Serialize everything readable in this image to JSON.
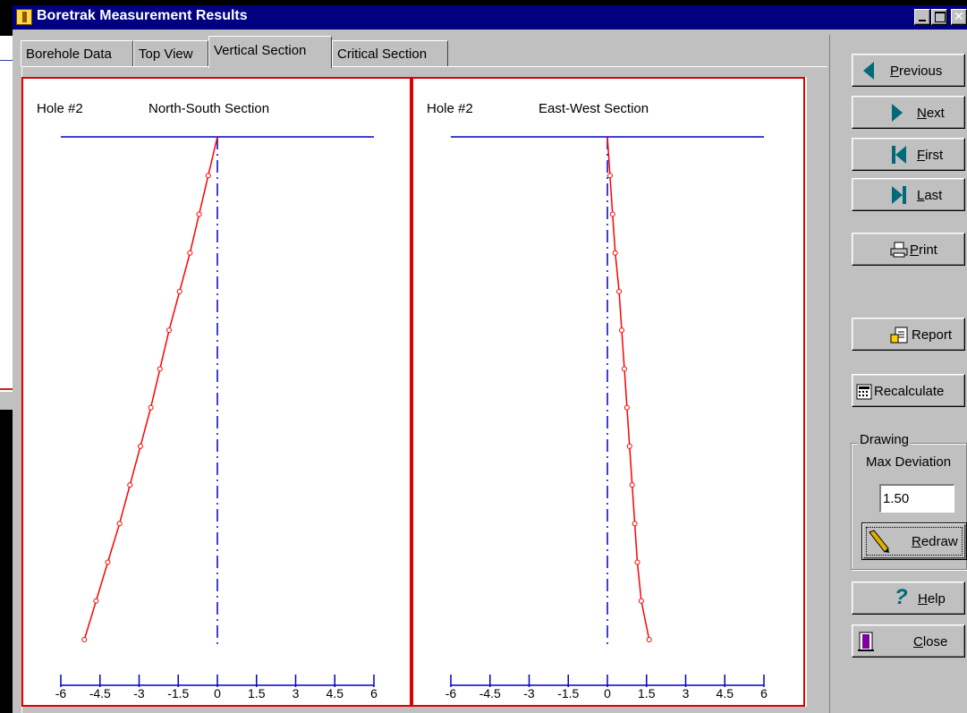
{
  "window": {
    "title": "Boretrak Measurement Results"
  },
  "tabs": [
    {
      "label": "Borehole Data",
      "active": false
    },
    {
      "label": "Top View",
      "active": false
    },
    {
      "label": "Vertical Section",
      "active": true
    },
    {
      "label": "Critical Section",
      "active": false
    }
  ],
  "buttons": {
    "previous": "Previous",
    "next": "Next",
    "first": "First",
    "last": "Last",
    "print": "Print",
    "report": "Report",
    "recalculate": "Recalculate",
    "redraw": "Redraw",
    "help": "Help",
    "close": "Close"
  },
  "drawing": {
    "group_label": "Drawing",
    "max_deviation_label": "Max Deviation",
    "max_deviation_value": "1.50"
  },
  "colors": {
    "plot_line": "#ff0000",
    "axis": "#0000c8",
    "panel_border": "#e00000",
    "title_bar": "#000080",
    "nav_icon": "#006b78"
  },
  "chart_data": [
    {
      "type": "line",
      "hole_label": "Hole #2",
      "title": "North-South Section",
      "xlim": [
        -6,
        6
      ],
      "x_ticks": [
        "-6",
        "-4.5",
        "-3",
        "-1.5",
        "0",
        "1.5",
        "3",
        "4.5",
        "6"
      ],
      "grid": false,
      "series": [
        {
          "points": [
            [
              0,
              0
            ],
            [
              -0.35,
              1
            ],
            [
              -0.7,
              2
            ],
            [
              -1.05,
              3
            ],
            [
              -1.45,
              4
            ],
            [
              -1.85,
              5
            ],
            [
              -2.2,
              6
            ],
            [
              -2.55,
              7
            ],
            [
              -2.95,
              8
            ],
            [
              -3.35,
              9
            ],
            [
              -3.75,
              10
            ],
            [
              -4.2,
              11
            ],
            [
              -4.65,
              12
            ],
            [
              -5.1,
              13
            ]
          ]
        }
      ]
    },
    {
      "type": "line",
      "hole_label": "Hole #2",
      "title": "East-West Section",
      "xlim": [
        -6,
        6
      ],
      "x_ticks": [
        "-6",
        "-4.5",
        "-3",
        "-1.5",
        "0",
        "1.5",
        "3",
        "4.5",
        "6"
      ],
      "grid": false,
      "series": [
        {
          "points": [
            [
              0,
              0
            ],
            [
              0.1,
              1
            ],
            [
              0.2,
              2
            ],
            [
              0.3,
              3
            ],
            [
              0.45,
              4
            ],
            [
              0.55,
              5
            ],
            [
              0.65,
              6
            ],
            [
              0.75,
              7
            ],
            [
              0.85,
              8
            ],
            [
              0.95,
              9
            ],
            [
              1.05,
              10
            ],
            [
              1.15,
              11
            ],
            [
              1.3,
              12
            ],
            [
              1.6,
              13
            ]
          ]
        }
      ]
    }
  ]
}
